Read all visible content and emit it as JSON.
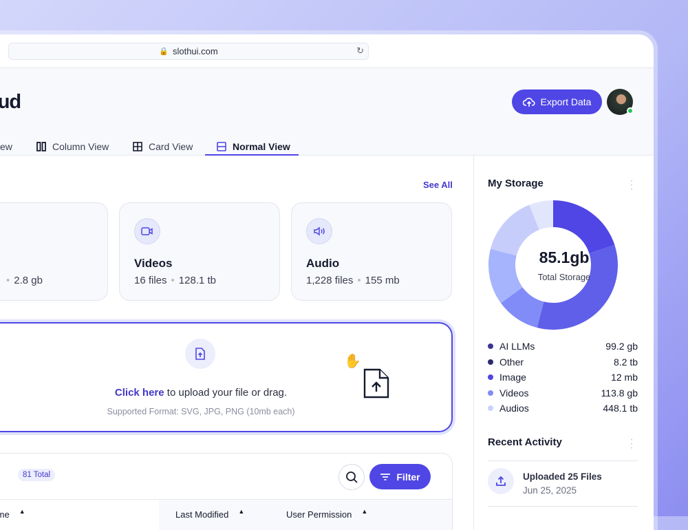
{
  "browser": {
    "url": "slothui.com"
  },
  "header": {
    "title": "oud",
    "export_label": "Export Data"
  },
  "tabs": [
    {
      "label": "ew",
      "icon": "list-icon"
    },
    {
      "label": "Column View",
      "icon": "columns-icon"
    },
    {
      "label": "Card View",
      "icon": "grid-icon"
    },
    {
      "label": "Normal View",
      "icon": "rows-icon",
      "active": true
    }
  ],
  "categories": {
    "see_all": "See All",
    "cards": [
      {
        "name": "",
        "files": "",
        "size": "2.8 gb"
      },
      {
        "name": "Videos",
        "files": "16 files",
        "size": "128.1 tb",
        "icon": "video-icon"
      },
      {
        "name": "Audio",
        "files": "1,228 files",
        "size": "155 mb",
        "icon": "speaker-icon"
      }
    ]
  },
  "upload": {
    "link": "Click here",
    "text": "to upload your file or drag.",
    "formats": "Supported Format: SVG, JPG, PNG (10mb each)"
  },
  "files": {
    "title": "s",
    "badge": "81 Total",
    "filter_label": "Filter",
    "columns": [
      "Name",
      "Last Modified",
      "User Permission"
    ]
  },
  "storage": {
    "title": "My Storage",
    "total": "85.1gb",
    "total_label": "Total Storage",
    "legend": [
      {
        "label": "AI LLMs",
        "value": "99.2 gb",
        "color": "#3b3596"
      },
      {
        "label": "Other",
        "value": "8.2 tb",
        "color": "#2e2a6e"
      },
      {
        "label": "Image",
        "value": "12 mb",
        "color": "#4f46e5"
      },
      {
        "label": "Videos",
        "value": "113.8 gb",
        "color": "#818cf8"
      },
      {
        "label": "Audios",
        "value": "448.1 tb",
        "color": "#c7d2fe"
      }
    ]
  },
  "chart_data": {
    "type": "pie",
    "donut": true,
    "segments_percent": [
      20,
      34,
      11,
      14,
      15,
      6
    ],
    "colors": [
      "#4f46e5",
      "#5f5fe9",
      "#818cf8",
      "#a5b4fc",
      "#c7cdfb",
      "#e2e6fd"
    ]
  },
  "activity": {
    "title": "Recent Activity",
    "items": [
      {
        "title": "Uploaded 25 Files",
        "date": "Jun 25, 2025"
      }
    ]
  }
}
